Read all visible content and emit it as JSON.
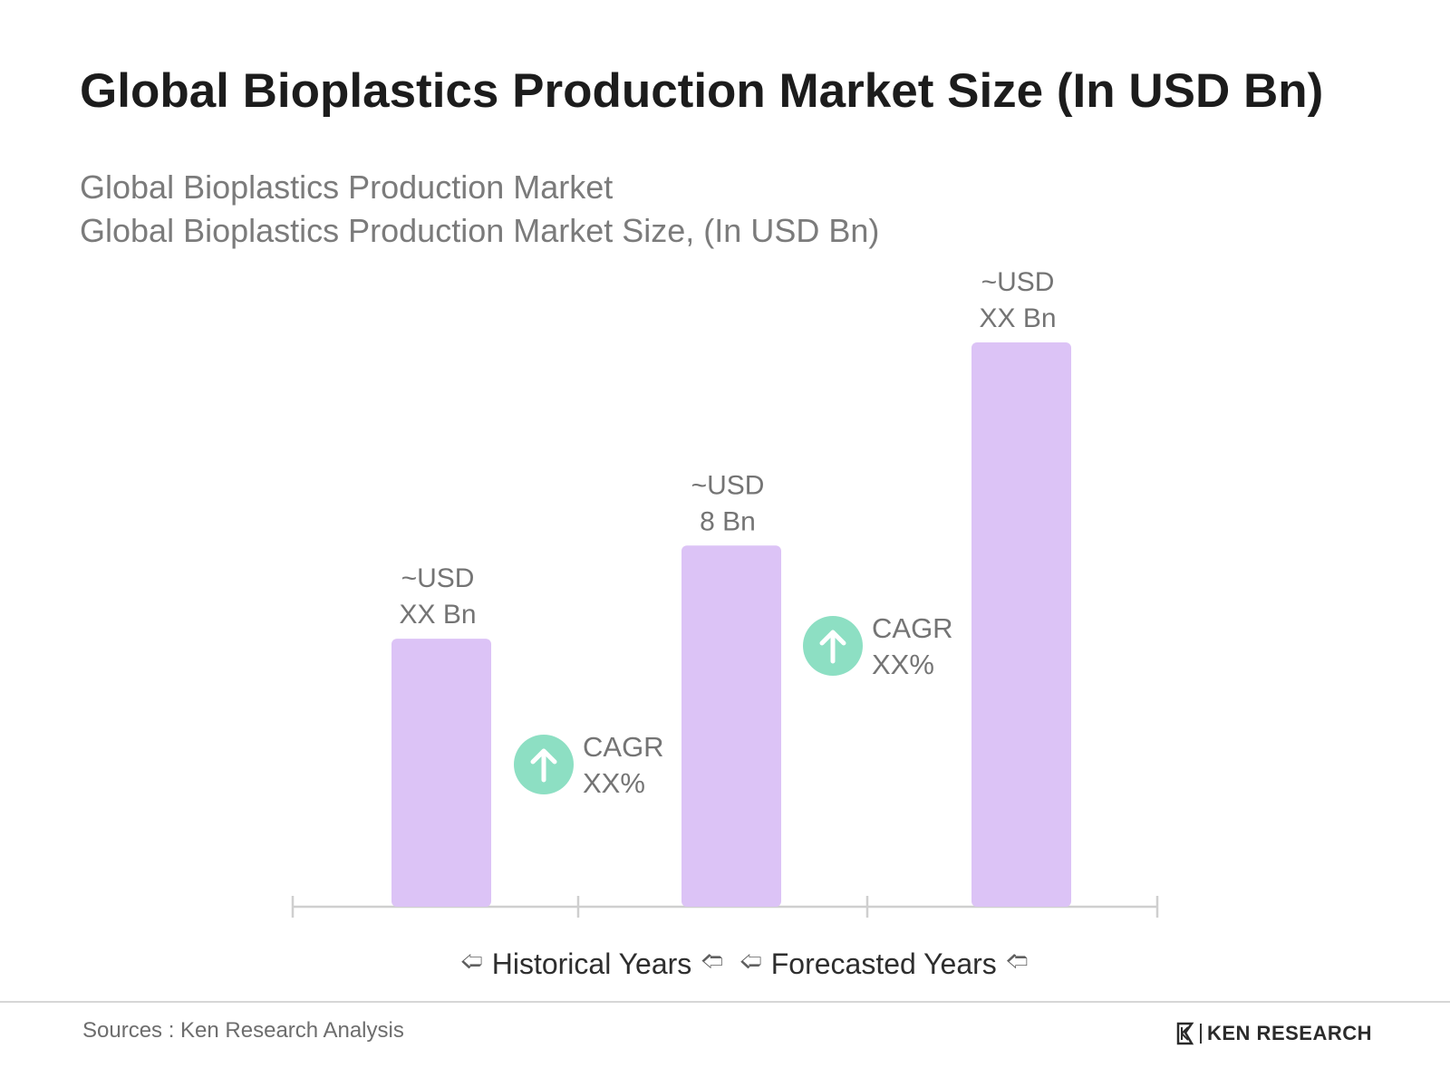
{
  "header": {
    "title": "Global Bioplastics Production Market Size (In USD Bn)",
    "subtitle_line1": "Global Bioplastics Production Market",
    "subtitle_line2": "Global Bioplastics Production Market Size, (In USD Bn)"
  },
  "chart_data": {
    "type": "bar",
    "categories": [
      "",
      "",
      ""
    ],
    "values": [
      null,
      8,
      null
    ],
    "relative_heights": [
      0.475,
      0.64,
      1.0
    ],
    "data_labels": [
      [
        "~USD",
        "XX Bn"
      ],
      [
        "~USD",
        "8 Bn"
      ],
      [
        "~USD",
        "XX Bn"
      ]
    ],
    "bar_color": "#dcc3f6",
    "axis_color": "#cfcfcf",
    "cagr_badges": [
      {
        "line1": "CAGR",
        "line2": "XX%",
        "direction": "up"
      },
      {
        "line1": "CAGR",
        "line2": "XX%",
        "direction": "up"
      }
    ],
    "cagr_color": "#8ddfc3",
    "periods": [
      "Historical Years",
      "Forecasted Years"
    ],
    "title": "",
    "xlabel": "",
    "ylabel": "",
    "grid": false,
    "legend": "none"
  },
  "footer": {
    "source": "Sources : Ken Research Analysis",
    "brand": "KEN RESEARCH",
    "brand_mark": "K"
  }
}
